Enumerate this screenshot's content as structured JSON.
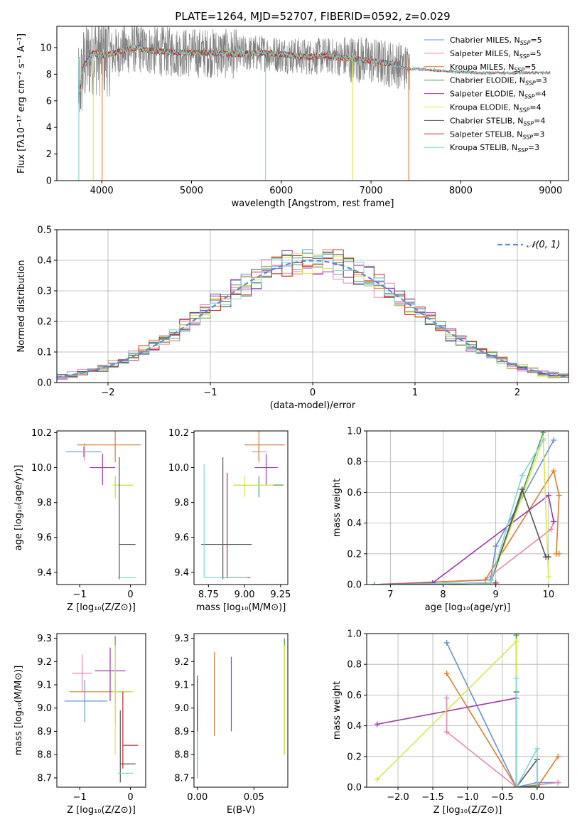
{
  "title": "PLATE=1264, MJD=52707, FIBERID=0592, z=0.029",
  "colors": {
    "chabrier_miles": "#6a8fd6",
    "salpeter_miles": "#e589b5",
    "kroupa_miles": "#e07b2d",
    "chabrier_elodie": "#4f9a48",
    "salpeter_elodie": "#9c37b0",
    "kroupa_elodie": "#d8e84a",
    "chabrier_stelib": "#555555",
    "salpeter_stelib": "#c62828",
    "kroupa_stelib": "#7fd6d6",
    "data": "#808080",
    "gaussian": "#5b8bd6"
  },
  "chart_data": [
    {
      "id": "spectrum",
      "type": "line",
      "xlabel": "wavelength [Angstrom, rest frame]",
      "ylabel": "Flux [fλ10⁻¹⁷ erg cm⁻² s⁻¹ A⁻¹]",
      "xlim": [
        3500,
        9200
      ],
      "ylim": [
        0,
        11.6
      ],
      "xticks": [
        4000,
        5000,
        6000,
        7000,
        8000,
        9000
      ],
      "yticks": [
        0,
        2,
        4,
        6,
        8,
        10
      ],
      "legend_position": "top-right",
      "continuum": {
        "x": [
          3740,
          3800,
          3900,
          4000,
          4100,
          4200,
          4300,
          4400,
          4500,
          4700,
          5000,
          5200,
          5500,
          5800,
          6000,
          6300,
          6500,
          6700,
          6900,
          7100,
          7300,
          7400,
          7500,
          7700,
          7900,
          8200
        ],
        "y": [
          6.2,
          8.6,
          9.6,
          9.4,
          9.5,
          9.7,
          9.9,
          10.0,
          9.8,
          9.7,
          9.6,
          9.6,
          9.5,
          9.6,
          9.5,
          9.3,
          9.4,
          9.2,
          9.1,
          8.9,
          8.7,
          8.5,
          8.5,
          8.4,
          8.3,
          8.2
        ]
      },
      "data_range": [
        3740,
        7430
      ],
      "series": [
        {
          "name": "Chabrier MILES, N_SSP=5",
          "label_main": "Chabrier MILES, N",
          "label_sub": "SSP",
          "label_end": "=5",
          "color_key": "chabrier_miles",
          "x_end": 7420
        },
        {
          "name": "Salpeter MILES, N_SSP=5",
          "label_main": "Salpeter MILES, N",
          "label_sub": "SSP",
          "label_end": "=5",
          "color_key": "salpeter_miles",
          "x_end": 7420
        },
        {
          "name": "Kroupa MILES, N_SSP=5",
          "label_main": "Kroupa MILES, N",
          "label_sub": "SSP",
          "label_end": "=5",
          "color_key": "kroupa_miles",
          "x_end": 7420
        },
        {
          "name": "Chabrier ELODIE, N_SSP=3",
          "label_main": "Chabrier ELODIE, N",
          "label_sub": "SSP",
          "label_end": "=3",
          "color_key": "chabrier_elodie",
          "x_end": 6800
        },
        {
          "name": "Salpeter ELODIE, N_SSP=4",
          "label_main": "Salpeter ELODIE, N",
          "label_sub": "SSP",
          "label_end": "=4",
          "color_key": "salpeter_elodie",
          "x_end": 6800
        },
        {
          "name": "Kroupa ELODIE, N_SSP=4",
          "label_main": "Kroupa ELODIE, N",
          "label_sub": "SSP",
          "label_end": "=4",
          "color_key": "kroupa_elodie",
          "x_end": 6800
        },
        {
          "name": "Chabrier STELIB, N_SSP=4",
          "label_main": "Chabrier STELIB, N",
          "label_sub": "SSP",
          "label_end": "=4",
          "color_key": "chabrier_stelib",
          "x_end": 9000
        },
        {
          "name": "Salpeter STELIB, N_SSP=3",
          "label_main": "Salpeter STELIB, N",
          "label_sub": "SSP",
          "label_end": "=3",
          "color_key": "salpeter_stelib",
          "x_end": 9000
        },
        {
          "name": "Kroupa STELIB, N_SSP=3",
          "label_main": "Kroupa STELIB, N",
          "label_sub": "SSP",
          "label_end": "=3",
          "color_key": "kroupa_stelib",
          "x_end": 9000
        }
      ]
    },
    {
      "id": "residuals",
      "type": "histogram",
      "xlabel": "(data-model)/error",
      "ylabel": "Normed distribution",
      "xlim": [
        -2.5,
        2.5
      ],
      "ylim": [
        0,
        0.5
      ],
      "xticks": [
        -2,
        -1,
        0,
        1,
        2
      ],
      "yticks": [
        0,
        0.1,
        0.2,
        0.3,
        0.4,
        0.5
      ],
      "grid": true,
      "legend_position": "top-right",
      "gaussian_label": "𝒩(0, 1)",
      "bin_width": 0.1,
      "bins_from": -2.5,
      "bins_to": 2.5
    },
    {
      "id": "age_vs_Z",
      "type": "errorbar",
      "xlabel": "Z [log₁₀(Z/Z⊙)]",
      "ylabel": "age  [log₁₀(age/yr)]",
      "xlim": [
        -1.45,
        0.3
      ],
      "ylim": [
        9.33,
        10.21
      ],
      "xticks": [
        -1,
        0
      ],
      "yticks": [
        9.4,
        9.6,
        9.8,
        10.0,
        10.2
      ],
      "points": [
        {
          "c": "chabrier_miles",
          "x": -0.92,
          "y": 10.09,
          "xe": [
            0.35,
            0.35
          ],
          "ye": [
            0.03,
            0.03
          ]
        },
        {
          "c": "salpeter_miles",
          "x": -0.9,
          "y": 10.09,
          "xe": [
            0.05,
            0.05
          ],
          "ye": [
            0.05,
            0.05
          ]
        },
        {
          "c": "kroupa_miles",
          "x": -0.3,
          "y": 10.13,
          "xe": [
            0.75,
            0.5
          ],
          "ye": [
            0.1,
            0.1
          ]
        },
        {
          "c": "chabrier_elodie",
          "x": -0.3,
          "y": 9.9,
          "xe": [
            0.0,
            0.35
          ],
          "ye": [
            0.07,
            0.05
          ]
        },
        {
          "c": "salpeter_elodie",
          "x": -0.55,
          "y": 10.0,
          "xe": [
            0.25,
            0.25
          ],
          "ye": [
            0.1,
            0.08
          ]
        },
        {
          "c": "kroupa_elodie",
          "x": -0.3,
          "y": 9.9,
          "xe": [
            0.05,
            0.35
          ],
          "ye": [
            0.08,
            0.05
          ]
        },
        {
          "c": "chabrier_stelib",
          "x": -0.22,
          "y": 9.56,
          "xe": [
            0.0,
            0.32
          ],
          "ye": [
            0.2,
            0.5
          ]
        },
        {
          "c": "salpeter_stelib",
          "x": -0.22,
          "y": 9.37,
          "xe": [
            0.0,
            0.0
          ],
          "ye": [
            0.0,
            0.0
          ]
        },
        {
          "c": "kroupa_stelib",
          "x": -0.2,
          "y": 9.37,
          "xe": [
            0.05,
            0.3
          ],
          "ye": [
            0.0,
            0.0
          ]
        }
      ]
    },
    {
      "id": "age_vs_mass",
      "type": "errorbar",
      "xlabel": "mass [log₁₀(M/M⊙)]",
      "ylabel": "",
      "xlim": [
        8.65,
        9.3
      ],
      "ylim": [
        9.33,
        10.21
      ],
      "xticks": [
        8.75,
        9.0,
        9.25
      ],
      "yticks": [
        9.4,
        9.6,
        9.8,
        10.0,
        10.2
      ],
      "points": [
        {
          "c": "chabrier_miles",
          "x": 9.1,
          "y": 10.09,
          "xe": [
            0.05,
            0.05
          ],
          "ye": [
            0.03,
            0.03
          ]
        },
        {
          "c": "salpeter_miles",
          "x": 9.1,
          "y": 10.09,
          "xe": [
            0.05,
            0.05
          ],
          "ye": [
            0.05,
            0.05
          ]
        },
        {
          "c": "kroupa_miles",
          "x": 9.1,
          "y": 10.13,
          "xe": [
            0.1,
            0.18
          ],
          "ye": [
            0.1,
            0.1
          ]
        },
        {
          "c": "chabrier_elodie",
          "x": 9.1,
          "y": 9.9,
          "xe": [
            0.17,
            0.17
          ],
          "ye": [
            0.07,
            0.05
          ]
        },
        {
          "c": "salpeter_elodie",
          "x": 9.15,
          "y": 10.0,
          "xe": [
            0.08,
            0.08
          ],
          "ye": [
            0.1,
            0.08
          ]
        },
        {
          "c": "kroupa_elodie",
          "x": 9.0,
          "y": 9.9,
          "xe": [
            0.08,
            0.2
          ],
          "ye": [
            0.07,
            0.05
          ]
        },
        {
          "c": "chabrier_stelib",
          "x": 8.85,
          "y": 9.56,
          "xe": [
            0.15,
            0.2
          ],
          "ye": [
            0.2,
            0.5
          ]
        },
        {
          "c": "salpeter_stelib",
          "x": 8.88,
          "y": 9.37,
          "xe": [
            0.05,
            0.16
          ],
          "ye": [
            0.0,
            0.6
          ]
        },
        {
          "c": "kroupa_stelib",
          "x": 8.72,
          "y": 9.37,
          "xe": [
            0.0,
            0.3
          ],
          "ye": [
            0.0,
            0.65
          ]
        }
      ]
    },
    {
      "id": "weight_vs_age",
      "type": "line",
      "xlabel": "age  [log₁₀(age/yr)]",
      "ylabel": "mass weight",
      "xlim": [
        6.55,
        10.38
      ],
      "ylim": [
        0,
        1
      ],
      "xticks": [
        7,
        8,
        9,
        10
      ],
      "yticks": [
        0.0,
        0.2,
        0.4,
        0.6,
        0.8,
        1.0
      ],
      "grid": true,
      "series": [
        {
          "c": "chabrier_miles",
          "x": [
            6.7,
            8.9,
            9.0,
            10.1
          ],
          "y": [
            0.0,
            0.03,
            0.25,
            0.94
          ]
        },
        {
          "c": "salpeter_miles",
          "x": [
            6.7,
            8.8,
            10.05,
            10.1
          ],
          "y": [
            0.0,
            0.03,
            0.36,
            0.41
          ]
        },
        {
          "c": "kroupa_miles",
          "x": [
            6.7,
            8.8,
            10.1,
            10.2,
            10.15,
            10.2
          ],
          "y": [
            0.0,
            0.03,
            0.74,
            0.58,
            0.2,
            0.2
          ]
        },
        {
          "c": "chabrier_elodie",
          "x": [
            6.7,
            8.9,
            9.9
          ],
          "y": [
            0.0,
            0.01,
            0.99
          ]
        },
        {
          "c": "salpeter_elodie",
          "x": [
            6.7,
            7.8,
            10.0,
            10.1
          ],
          "y": [
            0.0,
            0.01,
            0.58,
            0.41
          ]
        },
        {
          "c": "kroupa_elodie",
          "x": [
            6.7,
            8.9,
            9.9,
            10.0
          ],
          "y": [
            0.0,
            0.01,
            0.95,
            0.05
          ]
        },
        {
          "c": "chabrier_stelib",
          "x": [
            6.7,
            8.9,
            9.5,
            9.95,
            10.0
          ],
          "y": [
            0.0,
            0.01,
            0.62,
            0.18,
            0.18
          ]
        },
        {
          "c": "salpeter_stelib",
          "x": [
            6.7,
            8.9,
            9.0
          ],
          "y": [
            0.0,
            0.01,
            0.01
          ]
        },
        {
          "c": "kroupa_stelib",
          "x": [
            6.7,
            8.9,
            9.5,
            9.9
          ],
          "y": [
            0.0,
            0.01,
            0.71,
            0.94
          ]
        }
      ]
    },
    {
      "id": "mass_vs_Z",
      "type": "errorbar",
      "xlabel": "Z [log₁₀(Z/Z⊙)]",
      "ylabel": "mass [log₁₀(M/M⊙)]",
      "xlim": [
        -1.45,
        0.3
      ],
      "ylim": [
        8.66,
        9.32
      ],
      "xticks": [
        -1,
        0
      ],
      "yticks": [
        8.7,
        8.8,
        8.9,
        9.0,
        9.1,
        9.2,
        9.3
      ],
      "points": [
        {
          "c": "chabrier_miles",
          "x": -0.9,
          "y": 9.03,
          "xe": [
            0.4,
            0.45
          ],
          "ye": [
            0.09,
            0.09
          ]
        },
        {
          "c": "salpeter_miles",
          "x": -0.95,
          "y": 9.15,
          "xe": [
            0.2,
            0.2
          ],
          "ye": [
            0.08,
            0.08
          ]
        },
        {
          "c": "kroupa_miles",
          "x": -0.3,
          "y": 9.07,
          "xe": [
            0.9,
            0.35
          ],
          "ye": [
            0.05,
            0.05
          ]
        },
        {
          "c": "chabrier_elodie",
          "x": -0.3,
          "y": 9.07,
          "xe": [
            0.0,
            0.3
          ],
          "ye": [
            0.14,
            0.24
          ]
        },
        {
          "c": "salpeter_elodie",
          "x": -0.4,
          "y": 9.16,
          "xe": [
            0.3,
            0.3
          ],
          "ye": [
            0.13,
            0.1
          ]
        },
        {
          "c": "kroupa_elodie",
          "x": -0.3,
          "y": 9.07,
          "xe": [
            0.05,
            0.35
          ],
          "ye": [
            0.27,
            0.2
          ]
        },
        {
          "c": "chabrier_stelib",
          "x": -0.2,
          "y": 8.76,
          "xe": [
            0.0,
            0.3
          ],
          "ye": [
            0.08,
            0.23
          ]
        },
        {
          "c": "salpeter_stelib",
          "x": -0.15,
          "y": 8.84,
          "xe": [
            0.0,
            0.3
          ],
          "ye": [
            0.1,
            0.23
          ]
        },
        {
          "c": "kroupa_stelib",
          "x": -0.25,
          "y": 8.72,
          "xe": [
            0.0,
            0.3
          ],
          "ye": [
            0.0,
            0.0
          ]
        }
      ]
    },
    {
      "id": "mass_vs_EBV",
      "type": "errorbar",
      "xlabel": "E(B-V)",
      "ylabel": "",
      "xlim": [
        -0.003,
        0.08
      ],
      "ylim": [
        8.66,
        9.32
      ],
      "xticks": [
        0.0,
        0.05
      ],
      "yticks": [
        8.7,
        8.8,
        8.9,
        9.0,
        9.1,
        9.2,
        9.3
      ],
      "points": [
        {
          "c": "chabrier_miles",
          "x": 0.0,
          "y": 9.03,
          "ye": [
            0.3,
            0.09
          ]
        },
        {
          "c": "salpeter_miles",
          "x": 0.0,
          "y": 9.03,
          "ye": [
            0.3,
            0.0
          ]
        },
        {
          "c": "kroupa_miles",
          "x": 0.015,
          "y": 9.07,
          "ye": [
            0.19,
            0.17
          ]
        },
        {
          "c": "chabrier_elodie",
          "x": 0.077,
          "y": 9.07,
          "ye": [
            0.27,
            0.23
          ]
        },
        {
          "c": "salpeter_elodie",
          "x": 0.03,
          "y": 9.1,
          "ye": [
            0.2,
            0.12
          ]
        },
        {
          "c": "kroupa_elodie",
          "x": 0.077,
          "y": 9.07,
          "ye": [
            0.27,
            0.2
          ]
        },
        {
          "c": "chabrier_stelib",
          "x": 0.0,
          "y": 8.9,
          "ye": [
            0.2,
            0.1
          ]
        },
        {
          "c": "salpeter_stelib",
          "x": 0.0,
          "y": 8.95,
          "ye": [
            0.25,
            0.19
          ]
        },
        {
          "c": "kroupa_stelib",
          "x": 0.0,
          "y": 8.8,
          "ye": [
            0.1,
            0.1
          ]
        }
      ]
    },
    {
      "id": "weight_vs_Z",
      "type": "line",
      "xlabel": "Z [log₁₀(Z/Z⊙)]",
      "ylabel": "mass weight",
      "xlim": [
        -2.45,
        0.45
      ],
      "ylim": [
        0,
        1
      ],
      "xticks": [
        -2.0,
        -1.5,
        -1.0,
        -0.5,
        0.0
      ],
      "yticks": [
        0.0,
        0.2,
        0.4,
        0.6,
        0.8,
        1.0
      ],
      "grid": true,
      "series": [
        {
          "c": "chabrier_miles",
          "x": [
            -1.3,
            -0.3,
            0.0,
            0.3
          ],
          "y": [
            0.94,
            0.0,
            0.03,
            0.03
          ]
        },
        {
          "c": "salpeter_miles",
          "x": [
            -1.3,
            -1.3,
            -0.3,
            0.3,
            0.3
          ],
          "y": [
            0.58,
            0.36,
            0.0,
            0.03,
            0.03
          ]
        },
        {
          "c": "kroupa_miles",
          "x": [
            -1.3,
            -0.3,
            0.0,
            0.3
          ],
          "y": [
            0.74,
            0.0,
            0.0,
            0.2
          ]
        },
        {
          "c": "chabrier_elodie",
          "x": [
            -0.3,
            -0.3,
            0.0
          ],
          "y": [
            0.99,
            0.0,
            0.01
          ]
        },
        {
          "c": "salpeter_elodie",
          "x": [
            -2.3,
            -0.3
          ],
          "y": [
            0.41,
            0.58
          ]
        },
        {
          "c": "kroupa_elodie",
          "x": [
            -2.3,
            -0.3,
            -0.3
          ],
          "y": [
            0.05,
            0.95,
            0.0
          ]
        },
        {
          "c": "chabrier_stelib",
          "x": [
            -0.3,
            -0.3,
            0.0,
            0.0
          ],
          "y": [
            0.62,
            0.0,
            0.18,
            0.0
          ]
        },
        {
          "c": "salpeter_stelib",
          "x": [
            0.0,
            0.0
          ],
          "y": [
            0.0,
            0.0
          ]
        },
        {
          "c": "kroupa_stelib",
          "x": [
            -0.3,
            -0.3,
            0.0,
            0.0
          ],
          "y": [
            0.71,
            0.0,
            0.25,
            0.0
          ]
        }
      ]
    }
  ]
}
